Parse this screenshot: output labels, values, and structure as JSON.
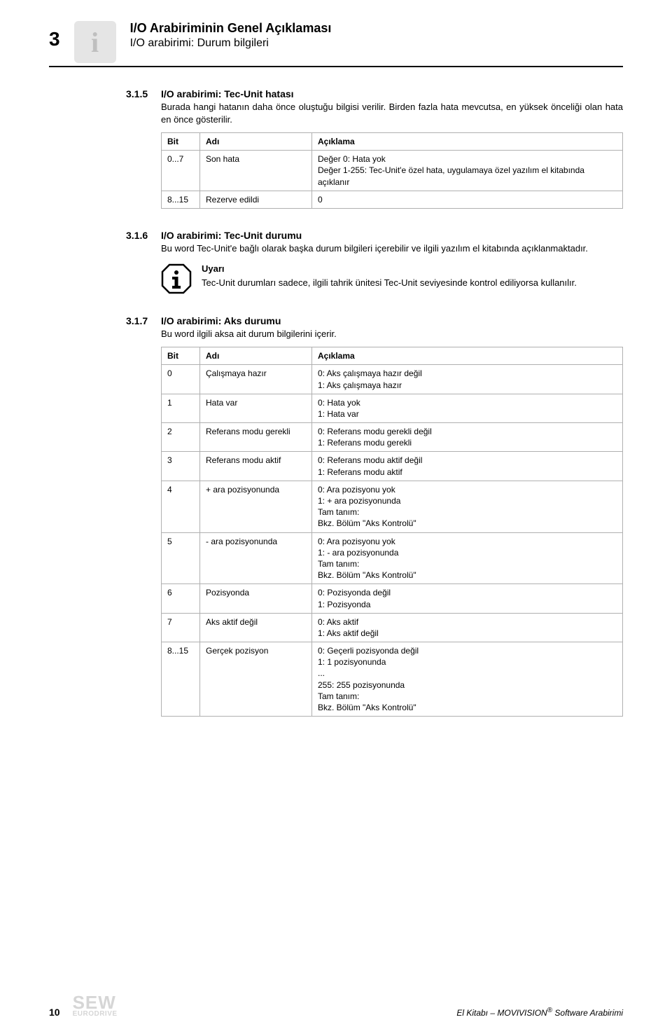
{
  "header": {
    "chapter_number": "3",
    "title": "I/O Arabiriminin Genel Açıklaması",
    "subtitle": "I/O arabirimi: Durum bilgileri"
  },
  "section_315": {
    "number": "3.1.5",
    "title": "I/O arabirimi: Tec-Unit hatası",
    "body": "Burada hangi hatanın daha önce oluştuğu bilgisi verilir. Birden fazla hata mevcutsa, en yüksek önceliği olan hata en önce gösterilir.",
    "table": {
      "headers": [
        "Bit",
        "Adı",
        "Açıklama"
      ],
      "rows": [
        [
          "0...7",
          "Son hata",
          "Değer 0: Hata yok\nDeğer 1-255: Tec-Unit'e özel hata, uygulamaya özel yazılım el kitabında açıklanır"
        ],
        [
          "8...15",
          "Rezerve edildi",
          "0"
        ]
      ]
    }
  },
  "section_316": {
    "number": "3.1.6",
    "title": "I/O arabirimi: Tec-Unit durumu",
    "body": "Bu word Tec-Unit'e bağlı olarak başka durum bilgileri içerebilir ve ilgili yazılım el kitabında açıklanmaktadır.",
    "note_title": "Uyarı",
    "note_body": "Tec-Unit durumları sadece, ilgili tahrik ünitesi Tec-Unit seviyesinde kontrol ediliyorsa kullanılır."
  },
  "section_317": {
    "number": "3.1.7",
    "title": "I/O arabirimi: Aks durumu",
    "body": "Bu word ilgili aksa ait durum bilgilerini içerir.",
    "table": {
      "headers": [
        "Bit",
        "Adı",
        "Açıklama"
      ],
      "rows": [
        [
          "0",
          "Çalışmaya hazır",
          "0: Aks çalışmaya hazır değil\n1: Aks çalışmaya hazır"
        ],
        [
          "1",
          "Hata var",
          "0: Hata yok\n1: Hata var"
        ],
        [
          "2",
          "Referans modu gerekli",
          "0: Referans modu gerekli değil\n1: Referans modu gerekli"
        ],
        [
          "3",
          "Referans modu aktif",
          "0: Referans modu aktif değil\n1: Referans modu aktif"
        ],
        [
          "4",
          "+ ara pozisyonunda",
          "0: Ara pozisyonu yok\n1: + ara pozisyonunda\nTam tanım:\nBkz. Bölüm \"Aks Kontrolü\""
        ],
        [
          "5",
          "- ara pozisyonunda",
          "0: Ara pozisyonu yok\n1: - ara pozisyonunda\nTam tanım:\nBkz. Bölüm \"Aks Kontrolü\""
        ],
        [
          "6",
          "Pozisyonda",
          "0: Pozisyonda değil\n1: Pozisyonda"
        ],
        [
          "7",
          "Aks aktif değil",
          "0: Aks aktif\n1: Aks aktif değil"
        ],
        [
          "8...15",
          "Gerçek pozisyon",
          "0: Geçerli pozisyonda değil\n1: 1 pozisyonunda\n...\n255: 255 pozisyonunda\nTam tanım:\nBkz. Bölüm \"Aks Kontrolü\""
        ]
      ]
    }
  },
  "footer": {
    "page_number": "10",
    "logo_top": "SEW",
    "logo_bottom": "EURODRIVE",
    "right_text_prefix": "El Kitabı – MOVIVISION",
    "right_text_suffix": " Software Arabirimi",
    "reg_mark": "®"
  }
}
